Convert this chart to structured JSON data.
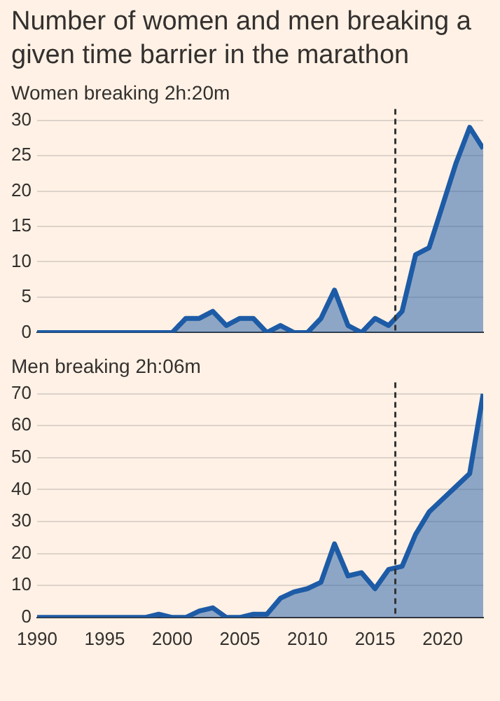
{
  "chart_data": [
    {
      "type": "area",
      "title": "Number of women and men breaking a given time barrier in the marathon",
      "subtitle": "Women breaking 2h:20m",
      "x": [
        1990,
        1991,
        1992,
        1993,
        1994,
        1995,
        1996,
        1997,
        1998,
        1999,
        2000,
        2001,
        2002,
        2003,
        2004,
        2005,
        2006,
        2007,
        2008,
        2009,
        2010,
        2011,
        2012,
        2013,
        2014,
        2015,
        2016,
        2017,
        2018,
        2019,
        2020,
        2021,
        2022,
        2023
      ],
      "series": [
        {
          "color": "#1d5ba6",
          "values": [
            0,
            0,
            0,
            0,
            0,
            0,
            0,
            0,
            0,
            0,
            0,
            2,
            2,
            3,
            1,
            2,
            2,
            0,
            1,
            0,
            0,
            2,
            6,
            1,
            0,
            2,
            1,
            3,
            11,
            12,
            18,
            24,
            29,
            26
          ]
        }
      ],
      "xlim": [
        1990,
        2023
      ],
      "ylim": [
        0,
        30
      ],
      "yticks": [
        0,
        5,
        10,
        15,
        20,
        25,
        30
      ],
      "grid": "y",
      "tick_labels": "y",
      "line_style": "solid",
      "ref_lines": [
        {
          "axis": "x",
          "value": 2016.5,
          "color": "#333333",
          "line_style": "dashed"
        }
      ]
    },
    {
      "type": "area",
      "title": "Men breaking 2h:06m",
      "x": [
        1990,
        1991,
        1992,
        1993,
        1994,
        1995,
        1996,
        1997,
        1998,
        1999,
        2000,
        2001,
        2002,
        2003,
        2004,
        2005,
        2006,
        2007,
        2008,
        2009,
        2010,
        2011,
        2012,
        2013,
        2014,
        2015,
        2016,
        2017,
        2018,
        2019,
        2020,
        2021,
        2022,
        2023
      ],
      "series": [
        {
          "color": "#1d5ba6",
          "values": [
            0,
            0,
            0,
            0,
            0,
            0,
            0,
            0,
            0,
            1,
            0,
            0,
            2,
            3,
            0,
            0,
            1,
            1,
            6,
            8,
            9,
            11,
            23,
            13,
            14,
            9,
            15,
            16,
            26,
            33,
            37,
            41,
            45,
            70
          ]
        }
      ],
      "xlim": [
        1990,
        2023
      ],
      "xticks": [
        1990,
        1995,
        2000,
        2005,
        2010,
        2015,
        2020
      ],
      "ylim": [
        0,
        70
      ],
      "yticks": [
        0,
        10,
        20,
        30,
        40,
        50,
        60,
        70
      ],
      "grid": "y",
      "line_style": "solid",
      "ref_lines": [
        {
          "axis": "x",
          "value": 2016.5,
          "color": "#333333",
          "line_style": "dashed"
        }
      ]
    }
  ]
}
